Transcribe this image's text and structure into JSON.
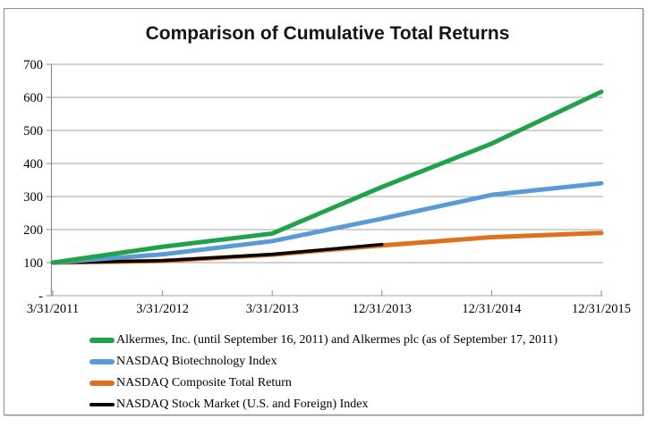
{
  "chart_data": {
    "type": "line",
    "title": "Comparison of Cumulative Total Returns",
    "categories": [
      "3/31/2011",
      "3/31/2012",
      "3/31/2013",
      "12/31/2013",
      "12/31/2014",
      "12/31/2015"
    ],
    "series": [
      {
        "name": "Alkermes, Inc. (until September 16, 2011) and Alkermes plc (as of September 17, 2011)",
        "color": "#1FA24A",
        "line_width": 5,
        "values": [
          100,
          148,
          188,
          329,
          460,
          617
        ]
      },
      {
        "name": "NASDAQ Biotechnology Index",
        "color": "#5B9BD5",
        "line_width": 5,
        "values": [
          100,
          125,
          165,
          233,
          305,
          340
        ]
      },
      {
        "name": "NASDAQ Composite Total Return",
        "color": "#DF701E",
        "line_width": 5,
        "values": [
          100,
          105,
          124,
          152,
          177,
          190
        ]
      },
      {
        "name": "NASDAQ Stock Market (U.S. and Foreign) Index",
        "color": "#000000",
        "line_width": 3.5,
        "values": [
          100,
          106,
          125,
          155,
          null,
          null
        ]
      }
    ],
    "xlabel": "",
    "ylabel": "",
    "y_axis": {
      "min": 0,
      "max": 700,
      "step": 100,
      "tick_labels": [
        "-",
        "100",
        "200",
        "300",
        "400",
        "500",
        "600",
        "700"
      ]
    },
    "grid": true,
    "legend_position": "bottom-left",
    "axis_color": "#8c8c8c",
    "grid_color": "#a6a6a6",
    "text_color": "#000000"
  }
}
